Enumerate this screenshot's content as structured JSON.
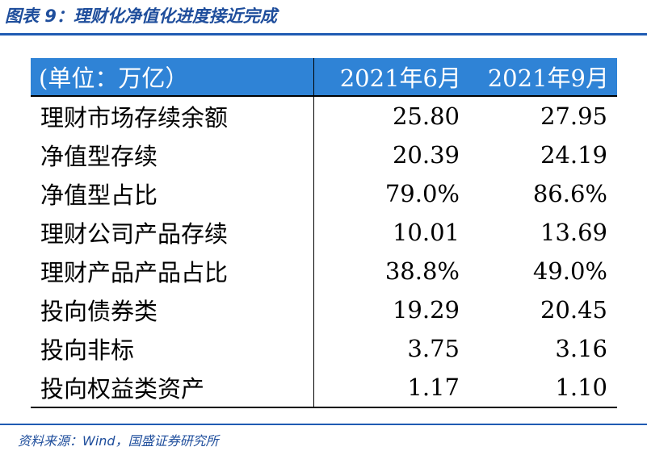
{
  "title": "图表 9：理财化净值化进度接近完成",
  "table": {
    "headers": [
      "(单位：万亿）",
      "2021年6月",
      "2021年9月"
    ],
    "rows": [
      [
        "理财市场存续余额",
        "25.80",
        "27.95"
      ],
      [
        "净值型存续",
        "20.39",
        "24.19"
      ],
      [
        "净值型占比",
        "79.0%",
        "86.6%"
      ],
      [
        "理财公司产品存续",
        "10.01",
        "13.69"
      ],
      [
        "理财产品产品占比",
        "38.8%",
        "49.0%"
      ],
      [
        "投向债券类",
        "19.29",
        "20.45"
      ],
      [
        "投向非标",
        "3.75",
        "3.16"
      ],
      [
        "投向权益类资产",
        "1.17",
        "1.10"
      ]
    ]
  },
  "source": "资料来源：Wind，国盛证券研究所",
  "colors": {
    "accent": "#1f4e9c",
    "header_bg": "#2f83d6",
    "rule": "#1f5bb3"
  }
}
